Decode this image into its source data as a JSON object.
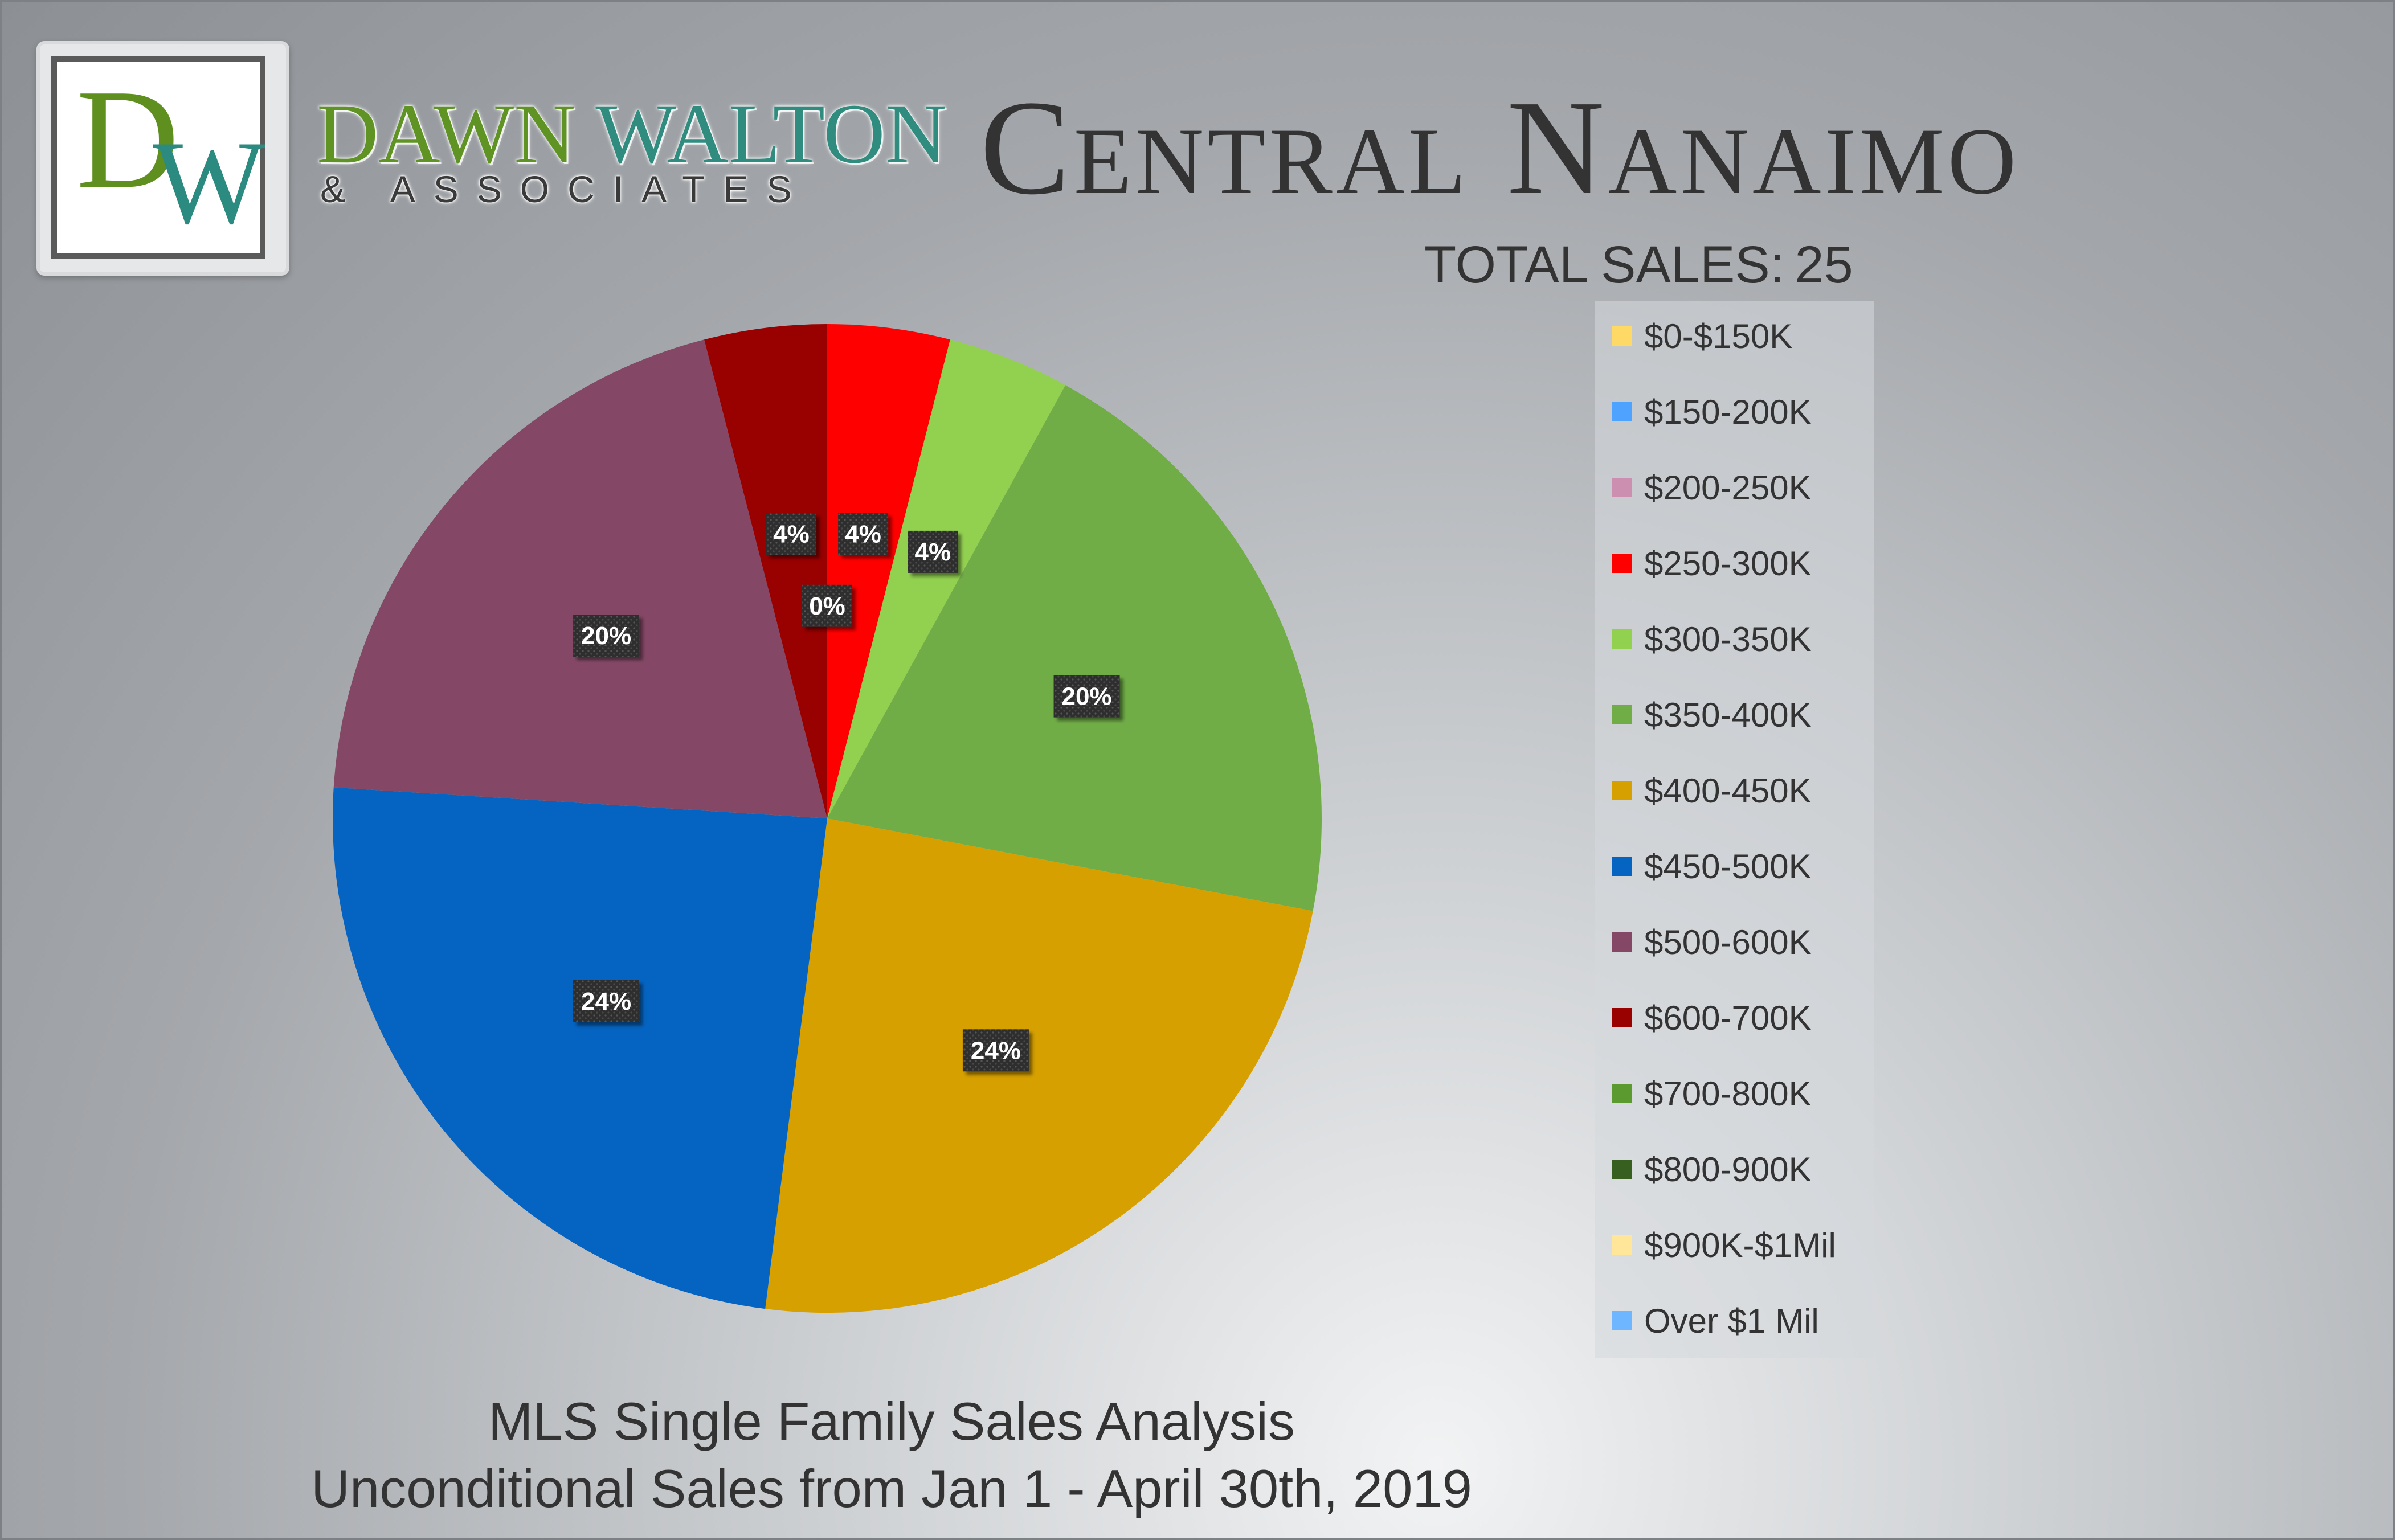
{
  "brand": {
    "logo_letters": "DW",
    "name_part1": "DAWN",
    "name_part2": "WALTON",
    "sub": "& ASSOCIATES"
  },
  "header": {
    "title": "Central Nanaimo",
    "total_label": "TOTAL SALES:",
    "total_value": "25"
  },
  "footer": {
    "line1": "MLS Single Family Sales Analysis",
    "line2": "Unconditional Sales from Jan 1 - April 30th, 2019"
  },
  "chart_data": {
    "type": "pie",
    "title": "Central Nanaimo",
    "categories": [
      "$0-$150K",
      "$150-200K",
      "$200-250K",
      "$250-300K",
      "$300-350K",
      "$350-400K",
      "$400-450K",
      "$450-500K",
      "$500-600K",
      "$600-700K",
      "$700-800K",
      "$800-900K",
      "$900K-$1Mil",
      "Over $1 Mil"
    ],
    "values": [
      0,
      0,
      0,
      4,
      4,
      20,
      24,
      24,
      20,
      4,
      0,
      0,
      0,
      0
    ],
    "colors": [
      "#ffd966",
      "#4da3ff",
      "#cc8fb0",
      "#ff0000",
      "#92d050",
      "#70ad47",
      "#d6a000",
      "#0563c1",
      "#844866",
      "#990000",
      "#5b9a2e",
      "#375f1f",
      "#ffe699",
      "#6eb6ff"
    ],
    "data_labels": [
      "0%",
      "0%",
      "0%",
      "4%",
      "4%",
      "20%",
      "24%",
      "24%",
      "20%",
      "4%",
      "0%",
      "0%",
      "0%",
      "0%"
    ],
    "legend_position": "right"
  }
}
